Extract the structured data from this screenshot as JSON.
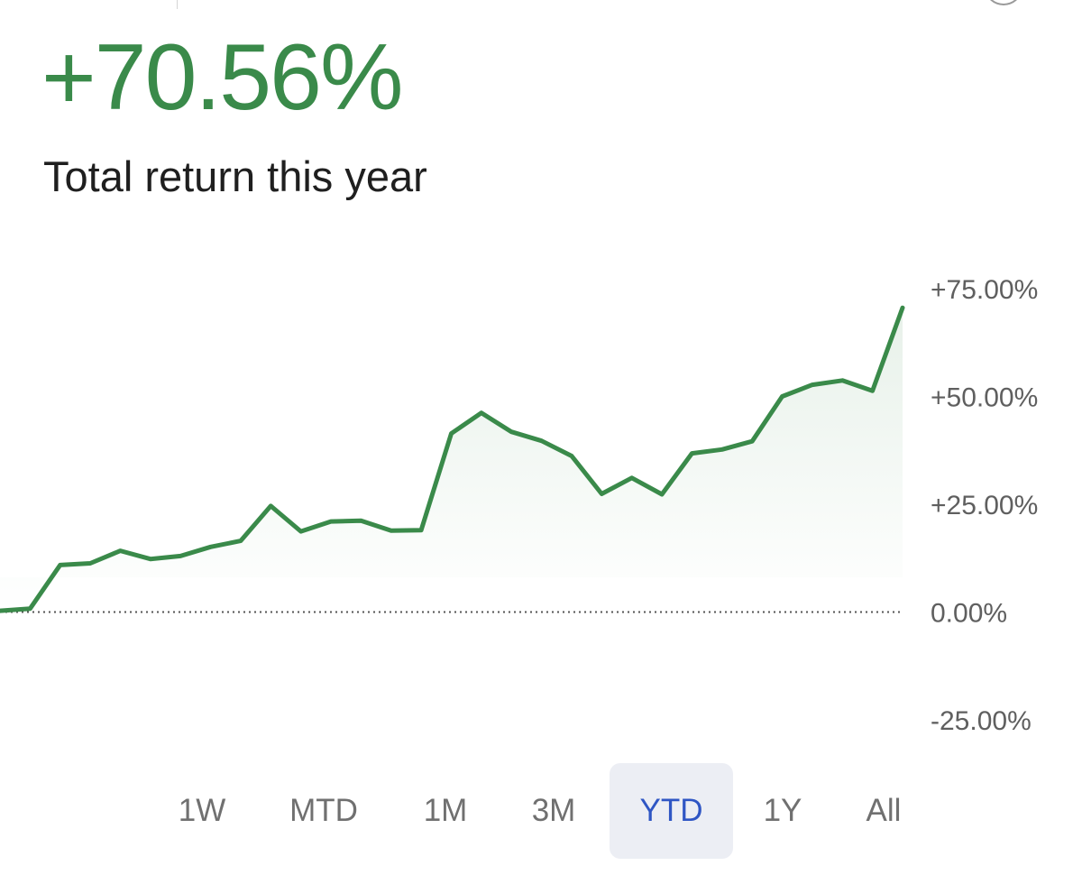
{
  "header": {
    "headline_value": "+70.56%",
    "subtitle": "Total return this year"
  },
  "colors": {
    "positive": "#3a8a4a",
    "negative": "#c0392b",
    "axis_text": "#5f5f5f",
    "baseline": "#555555",
    "active_tab_bg": "#eceef4",
    "active_tab_text": "#2f56c4",
    "inactive_tab_text": "#707070"
  },
  "chart_data": {
    "type": "area",
    "title": "",
    "xlabel": "",
    "ylabel": "",
    "ylim": [
      -25,
      75
    ],
    "yticks": [
      75,
      50,
      25,
      0,
      -25
    ],
    "ytick_labels": [
      "+75.00%",
      "+50.00%",
      "+25.00%",
      "0.00%",
      "-25.00%"
    ],
    "baseline": 0,
    "grid": false,
    "legend": "none",
    "series": [
      {
        "values": [
          0.3,
          0.8,
          10.9,
          11.3,
          14.2,
          12.3,
          13.0,
          15.1,
          16.5,
          24.6,
          18.7,
          21.0,
          21.2,
          18.9,
          19.0,
          41.4,
          46.2,
          41.8,
          39.7,
          36.2,
          27.4,
          31.1,
          27.3,
          36.8,
          37.7,
          39.6,
          50.0,
          52.7,
          53.7,
          51.3,
          70.56
        ]
      }
    ]
  },
  "range_selector": {
    "items": [
      {
        "label": "1W",
        "active": false
      },
      {
        "label": "MTD",
        "active": false
      },
      {
        "label": "1M",
        "active": false
      },
      {
        "label": "3M",
        "active": false
      },
      {
        "label": "YTD",
        "active": true
      },
      {
        "label": "1Y",
        "active": false
      },
      {
        "label": "All",
        "active": false
      }
    ]
  }
}
